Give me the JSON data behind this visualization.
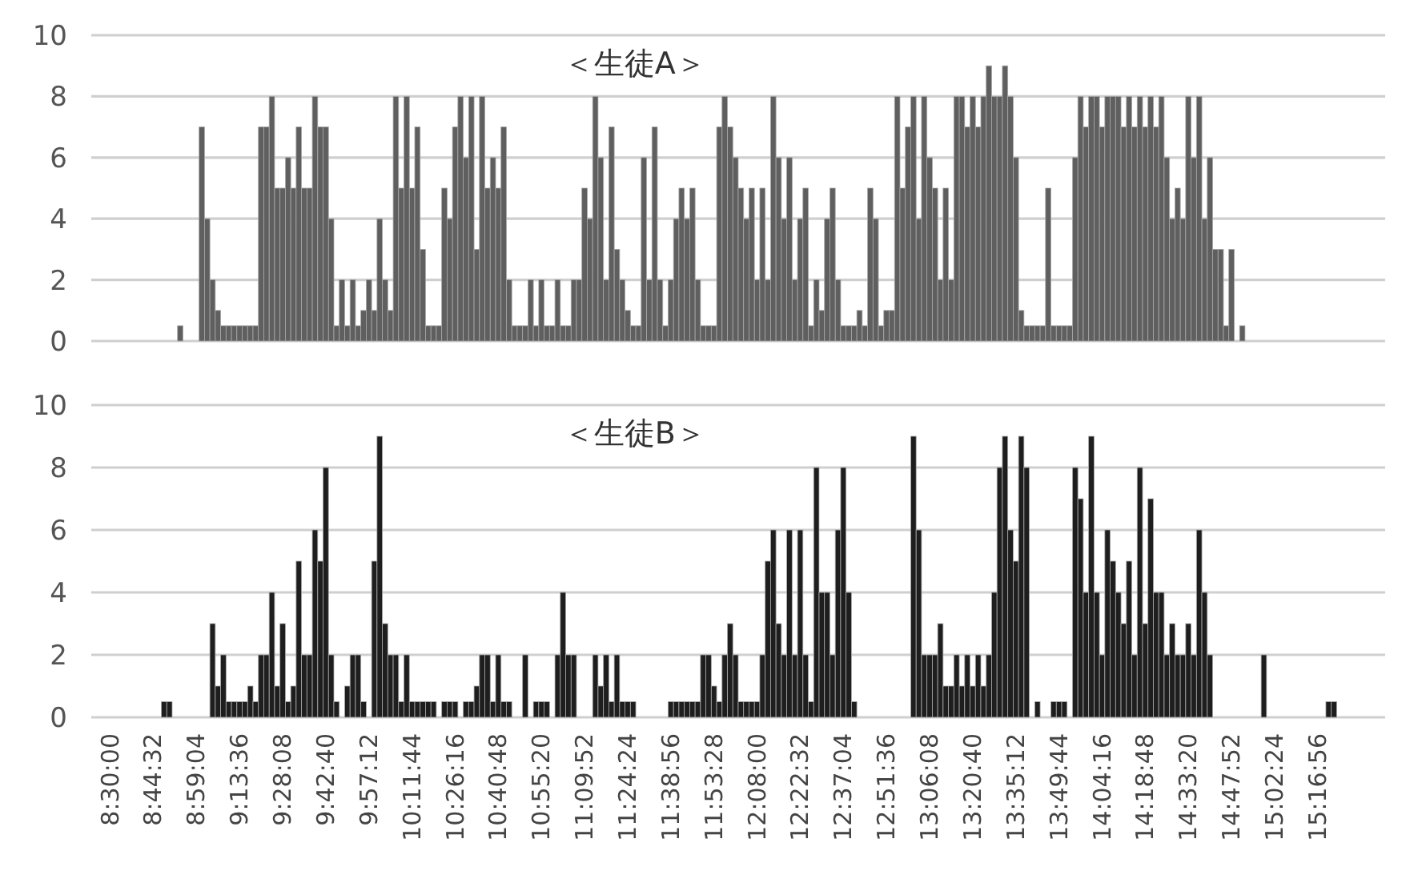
{
  "chart_data": [
    {
      "type": "bar",
      "title": "＜生徒A＞",
      "color": "#5f5f5f",
      "ylim": [
        0,
        10
      ],
      "yticks": [
        0,
        2,
        4,
        6,
        8,
        10
      ],
      "grid": "y",
      "tick_labels": "y",
      "values": [
        null,
        null,
        null,
        null,
        null,
        null,
        null,
        null,
        null,
        null,
        null,
        null,
        null,
        null,
        null,
        null,
        0.5,
        null,
        null,
        null,
        7,
        4,
        2,
        1,
        0.5,
        0.5,
        0.5,
        0.5,
        0.5,
        0.5,
        0.5,
        7,
        7,
        8,
        5,
        5,
        6,
        5,
        7,
        5,
        5,
        8,
        7,
        7,
        4,
        0.5,
        2,
        0.5,
        2,
        0.5,
        1,
        2,
        1,
        4,
        2,
        1,
        8,
        5,
        8,
        5,
        7,
        3,
        0.5,
        0.5,
        0.5,
        5,
        4,
        7,
        8,
        6,
        8,
        3,
        8,
        5,
        6,
        5,
        7,
        2,
        0.5,
        0.5,
        0.5,
        2,
        0.5,
        2,
        0.5,
        0.5,
        2,
        0.5,
        0.5,
        2,
        2,
        5,
        4,
        8,
        6,
        2,
        7,
        3,
        2,
        1,
        0.5,
        0.5,
        6,
        2,
        7,
        2,
        0.5,
        2,
        4,
        5,
        4,
        5,
        2,
        0.5,
        0.5,
        0.5,
        7,
        8,
        7,
        6,
        5,
        4,
        5,
        2,
        5,
        2,
        8,
        6,
        4,
        6,
        2,
        4,
        5,
        0.5,
        2,
        1,
        4,
        5,
        2,
        0.5,
        0.5,
        0.5,
        1,
        0.5,
        5,
        4,
        0.5,
        1,
        1,
        8,
        5,
        7,
        8,
        4,
        8,
        6,
        5,
        2,
        5,
        2,
        8,
        8,
        7,
        8,
        7,
        8,
        9,
        8,
        8,
        9,
        8,
        6,
        1,
        0.5,
        0.5,
        0.5,
        0.5,
        5,
        0.5,
        0.5,
        0.5,
        0.5,
        6,
        8,
        7,
        8,
        8,
        7,
        8,
        8,
        8,
        7,
        8,
        7,
        8,
        7,
        8,
        7,
        8,
        6,
        4,
        5,
        4,
        8,
        6,
        8,
        4,
        6,
        3,
        3,
        0.5,
        3,
        null,
        0.5,
        null,
        null,
        null,
        null,
        null,
        null,
        null,
        null,
        null,
        null,
        null,
        null,
        null,
        null,
        null,
        null,
        null,
        null,
        null,
        null,
        null,
        null,
        null,
        null,
        null,
        null
      ]
    },
    {
      "type": "bar",
      "title": "＜生徒B＞",
      "color": "#1e1e1e",
      "ylim": [
        0,
        10
      ],
      "yticks": [
        0,
        2,
        4,
        6,
        8,
        10
      ],
      "grid": "y",
      "categories": [
        null,
        null,
        null,
        "8:30:00",
        null,
        null,
        null,
        null,
        null,
        null,
        null,
        "8:44:32",
        null,
        null,
        null,
        null,
        null,
        null,
        null,
        "8:59:04",
        null,
        null,
        null,
        null,
        null,
        null,
        null,
        "9:13:36",
        null,
        null,
        null,
        null,
        null,
        null,
        null,
        "9:28:08",
        null,
        null,
        null,
        null,
        null,
        null,
        null,
        "9:42:40",
        null,
        null,
        null,
        null,
        null,
        null,
        null,
        "9:57:12",
        null,
        null,
        null,
        null,
        null,
        null,
        null,
        "10:11:44",
        null,
        null,
        null,
        null,
        null,
        null,
        null,
        "10:26:16",
        null,
        null,
        null,
        null,
        null,
        null,
        null,
        "10:40:48",
        null,
        null,
        null,
        null,
        null,
        null,
        null,
        "10:55:20",
        null,
        null,
        null,
        null,
        null,
        null,
        null,
        "11:09:52",
        null,
        null,
        null,
        null,
        null,
        null,
        null,
        "11:24:24",
        null,
        null,
        null,
        null,
        null,
        null,
        null,
        "11:38:56",
        null,
        null,
        null,
        null,
        null,
        null,
        null,
        "11:53:28",
        null,
        null,
        null,
        null,
        null,
        null,
        null,
        "12:08:00",
        null,
        null,
        null,
        null,
        null,
        null,
        null,
        "12:22:32",
        null,
        null,
        null,
        null,
        null,
        null,
        null,
        "12:37:04",
        null,
        null,
        null,
        null,
        null,
        null,
        null,
        "12:51:36",
        null,
        null,
        null,
        null,
        null,
        null,
        null,
        "13:06:08",
        null,
        null,
        null,
        null,
        null,
        null,
        null,
        "13:20:40",
        null,
        null,
        null,
        null,
        null,
        null,
        null,
        "13:35:12",
        null,
        null,
        null,
        null,
        null,
        null,
        null,
        "13:49:44",
        null,
        null,
        null,
        null,
        null,
        null,
        null,
        "14:04:16",
        null,
        null,
        null,
        null,
        null,
        null,
        null,
        "14:18:48",
        null,
        null,
        null,
        null,
        null,
        null,
        null,
        "14:33:20",
        null,
        null,
        null,
        null,
        null,
        null,
        null,
        "14:47:52",
        null,
        null,
        null,
        null,
        null,
        null,
        null,
        "15:02:24",
        null,
        null,
        null,
        null,
        null,
        null,
        null,
        "15:16:56",
        null,
        null,
        null,
        null,
        null,
        null,
        null,
        null,
        null,
        null,
        null,
        null
      ],
      "values": [
        null,
        null,
        null,
        null,
        null,
        null,
        null,
        null,
        null,
        null,
        null,
        null,
        null,
        0.5,
        0.5,
        null,
        null,
        null,
        null,
        null,
        null,
        null,
        3,
        1,
        2,
        0.5,
        0.5,
        0.5,
        0.5,
        1,
        0.5,
        2,
        2,
        4,
        1,
        3,
        0.5,
        1,
        5,
        2,
        2,
        6,
        5,
        8,
        2,
        0.5,
        null,
        1,
        2,
        2,
        0.5,
        null,
        5,
        9,
        3,
        2,
        2,
        0.5,
        2,
        0.5,
        0.5,
        0.5,
        0.5,
        0.5,
        null,
        0.5,
        0.5,
        0.5,
        null,
        0.5,
        0.5,
        1,
        2,
        2,
        0.5,
        2,
        0.5,
        0.5,
        null,
        null,
        2,
        null,
        0.5,
        0.5,
        0.5,
        null,
        2,
        4,
        2,
        2,
        null,
        null,
        null,
        2,
        1,
        2,
        0.5,
        2,
        0.5,
        0.5,
        0.5,
        null,
        null,
        null,
        null,
        null,
        null,
        0.5,
        0.5,
        0.5,
        0.5,
        0.5,
        0.5,
        2,
        2,
        1,
        0.5,
        2,
        3,
        2,
        0.5,
        0.5,
        0.5,
        0.5,
        2,
        5,
        6,
        3,
        2,
        6,
        2,
        6,
        2,
        0.5,
        8,
        4,
        4,
        2,
        6,
        8,
        4,
        0.5,
        null,
        null,
        null,
        null,
        null,
        null,
        null,
        null,
        null,
        null,
        9,
        6,
        2,
        2,
        2,
        3,
        1,
        1,
        2,
        1,
        2,
        1,
        2,
        1,
        2,
        4,
        8,
        9,
        6,
        5,
        9,
        8,
        null,
        0.5,
        null,
        null,
        0.5,
        0.5,
        0.5,
        null,
        8,
        7,
        4,
        9,
        4,
        2,
        6,
        5,
        4,
        3,
        5,
        2,
        8,
        3,
        7,
        4,
        4,
        2,
        3,
        2,
        2,
        3,
        2,
        6,
        4,
        2,
        null,
        null,
        null,
        null,
        null,
        null,
        null,
        null,
        null,
        2,
        null,
        null,
        null,
        null,
        null,
        null,
        null,
        null,
        null,
        null,
        null,
        0.5,
        0.5,
        null,
        null,
        null,
        null,
        null,
        null,
        null,
        null,
        null
      ]
    }
  ]
}
